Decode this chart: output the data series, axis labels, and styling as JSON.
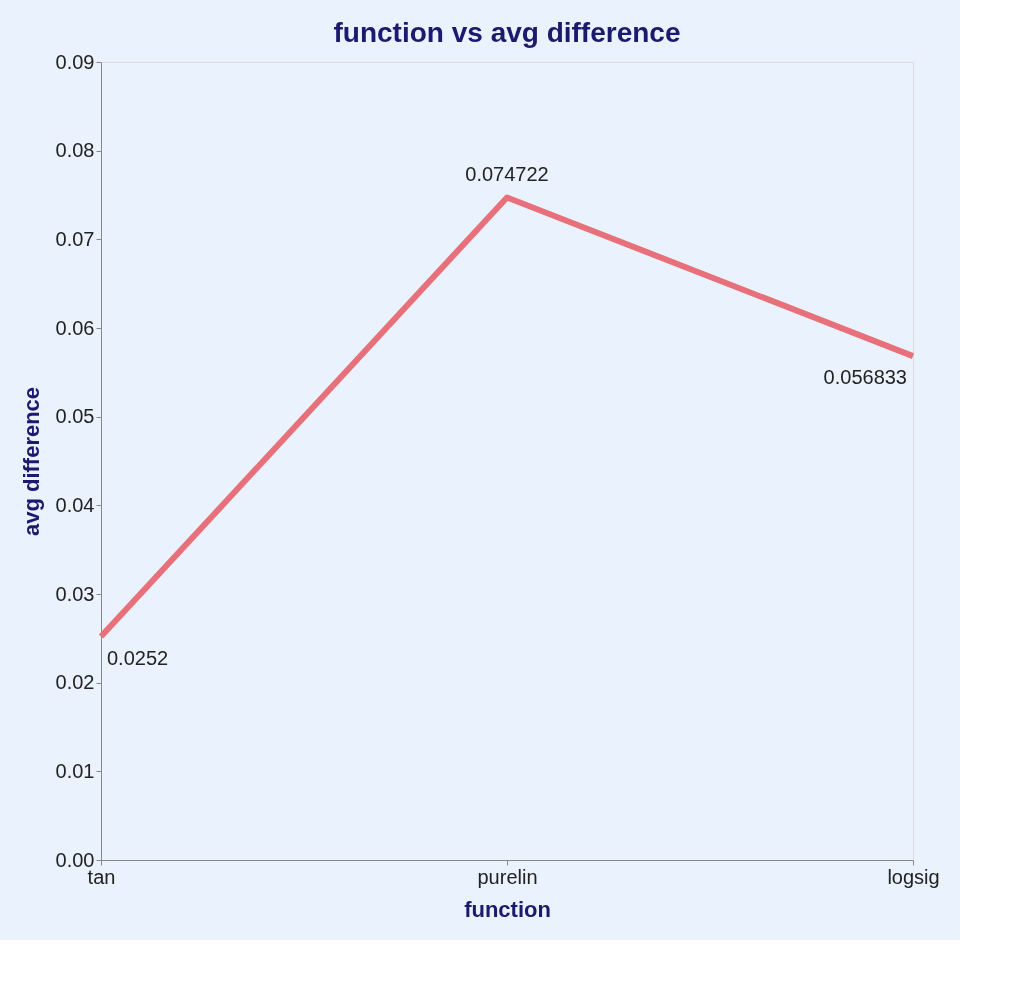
{
  "chart_data": {
    "type": "line",
    "title": "function vs avg difference",
    "xlabel": "function",
    "ylabel": "avg difference",
    "categories": [
      "tan",
      "purelin",
      "logsig"
    ],
    "series": [
      {
        "color": "#e8707a",
        "values": [
          0.0252,
          0.074722,
          0.056833
        ]
      }
    ],
    "ylim": [
      0,
      0.09
    ],
    "yticks": [
      {
        "value": 0,
        "label": "0.00"
      },
      0.01,
      0.02,
      0.03,
      0.04,
      0.05,
      0.06,
      0.07,
      0.08,
      0.09
    ],
    "data_labels": true,
    "grid": false,
    "legend": false,
    "marker": "none",
    "line_style": "solid"
  }
}
